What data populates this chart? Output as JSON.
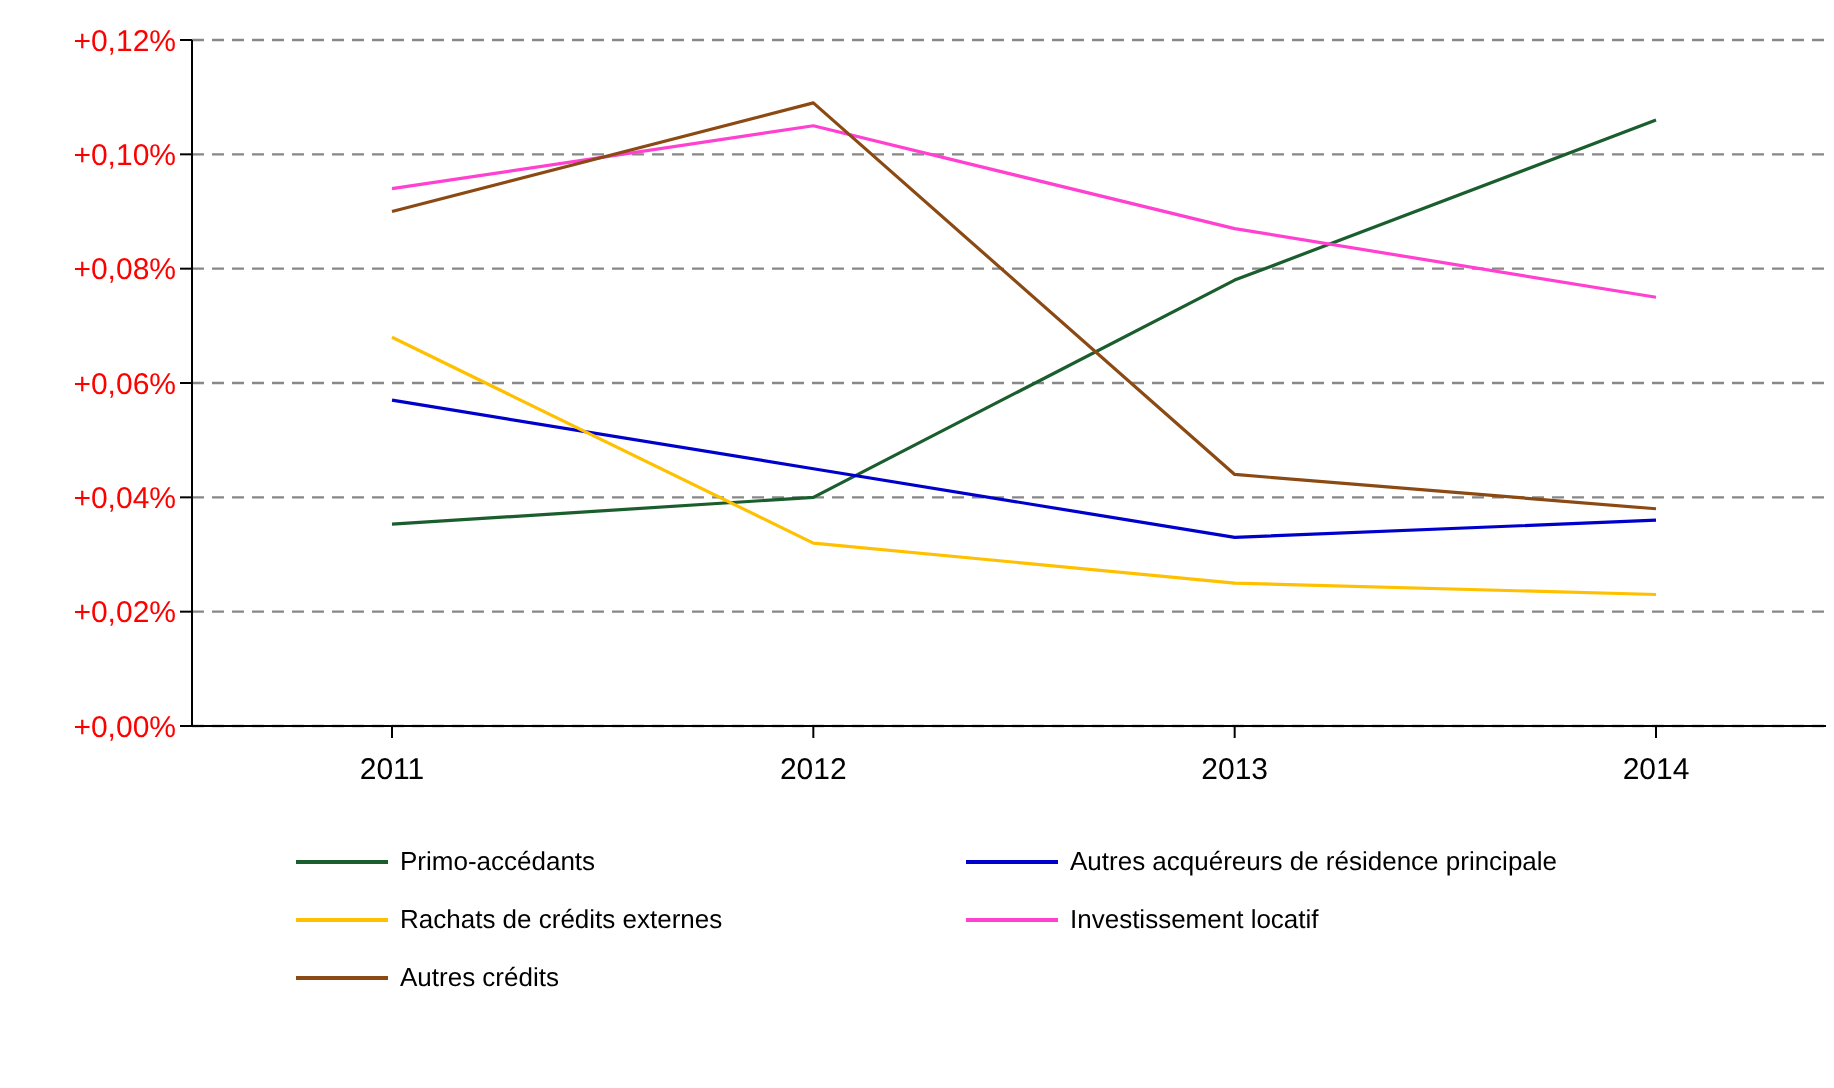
{
  "chart_data": {
    "type": "line",
    "categories": [
      "2011",
      "2012",
      "2013",
      "2014"
    ],
    "series": [
      {
        "name": "Primo-accédants",
        "color": "#1a5e2e",
        "values": [
          0.0353,
          0.04,
          0.078,
          0.106
        ]
      },
      {
        "name": "Autres acquéreurs de résidence principale",
        "color": "#0000cc",
        "values": [
          0.057,
          0.045,
          0.033,
          0.036
        ]
      },
      {
        "name": "Rachats de crédits externes",
        "color": "#ffc000",
        "values": [
          0.068,
          0.032,
          0.025,
          0.023
        ]
      },
      {
        "name": "Investissement locatif",
        "color": "#ff40d0",
        "values": [
          0.094,
          0.105,
          0.087,
          0.075
        ]
      },
      {
        "name": "Autres crédits",
        "color": "#8b4a13",
        "values": [
          0.09,
          0.109,
          0.044,
          0.038
        ]
      }
    ],
    "ylim": [
      0,
      0.12
    ],
    "yticks": [
      {
        "value": 0,
        "label": "+0,00%"
      },
      {
        "value": 0.02,
        "label": "+0,02%"
      },
      {
        "value": 0.04,
        "label": "+0,04%"
      },
      {
        "value": 0.06,
        "label": "+0,06%"
      },
      {
        "value": 0.08,
        "label": "+0,08%"
      },
      {
        "value": 0.1,
        "label": "+0,10%"
      },
      {
        "value": 0.12,
        "label": "+0,12%"
      }
    ],
    "grid": "y",
    "legend": "bottom",
    "marker": "none",
    "line_style": "solid"
  }
}
